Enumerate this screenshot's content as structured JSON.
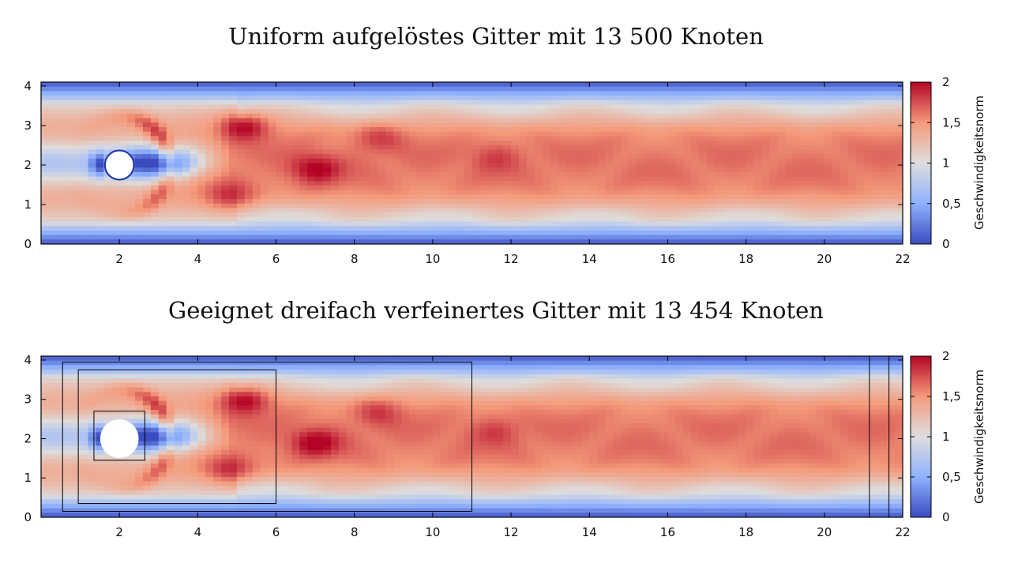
{
  "chart_data": [
    {
      "type": "heatmap",
      "title": "Uniform aufgelöstes Gitter mit 13 500 Knoten",
      "xlim": [
        0,
        22
      ],
      "ylim": [
        0,
        4.1
      ],
      "x_ticks": [
        2,
        4,
        6,
        8,
        10,
        12,
        14,
        16,
        18,
        20,
        22
      ],
      "y_ticks": [
        0,
        1,
        2,
        3,
        4
      ],
      "colorbar": {
        "label": "Geschwindigkeitsnorm",
        "range": [
          0,
          2
        ],
        "ticks": [
          {
            "value": 0,
            "label": "0"
          },
          {
            "value": 0.5,
            "label": "0,5"
          },
          {
            "value": 1,
            "label": "1"
          },
          {
            "value": 1.5,
            "label": "1,5"
          },
          {
            "value": 2,
            "label": "2"
          }
        ],
        "colors": [
          "#3b4cc0",
          "#dddddd",
          "#b40426"
        ]
      },
      "obstacle": {
        "shape": "circle",
        "center": [
          2,
          2
        ],
        "radius": 0.37
      },
      "refinement_boxes": []
    },
    {
      "type": "heatmap",
      "title": "Geeignet dreifach verfeinertes Gitter mit 13 454 Knoten",
      "xlim": [
        0,
        22
      ],
      "ylim": [
        0,
        4.1
      ],
      "x_ticks": [
        2,
        4,
        6,
        8,
        10,
        12,
        14,
        16,
        18,
        20,
        22
      ],
      "y_ticks": [
        0,
        1,
        2,
        3,
        4
      ],
      "colorbar": {
        "label": "Geschwindigkeitsnorm",
        "range": [
          0,
          2
        ],
        "ticks": [
          {
            "value": 0,
            "label": "0"
          },
          {
            "value": 0.5,
            "label": "0,5"
          },
          {
            "value": 1,
            "label": "1"
          },
          {
            "value": 1.5,
            "label": "1,5"
          },
          {
            "value": 2,
            "label": "2"
          }
        ],
        "colors": [
          "#3b4cc0",
          "#dddddd",
          "#b40426"
        ]
      },
      "obstacle": {
        "shape": "circle",
        "center": [
          2,
          2
        ],
        "radius": 0.47
      },
      "refinement_boxes": [
        {
          "x0": 0.55,
          "x1": 11.0,
          "y0": 0.15,
          "y1": 3.95
        },
        {
          "x0": 0.95,
          "x1": 6.0,
          "y0": 0.35,
          "y1": 3.75
        },
        {
          "x0": 1.35,
          "x1": 2.65,
          "y0": 1.45,
          "y1": 2.7
        },
        {
          "x0": 21.15,
          "x1": 21.65,
          "y0": 0.0,
          "y1": 4.1
        }
      ]
    }
  ]
}
